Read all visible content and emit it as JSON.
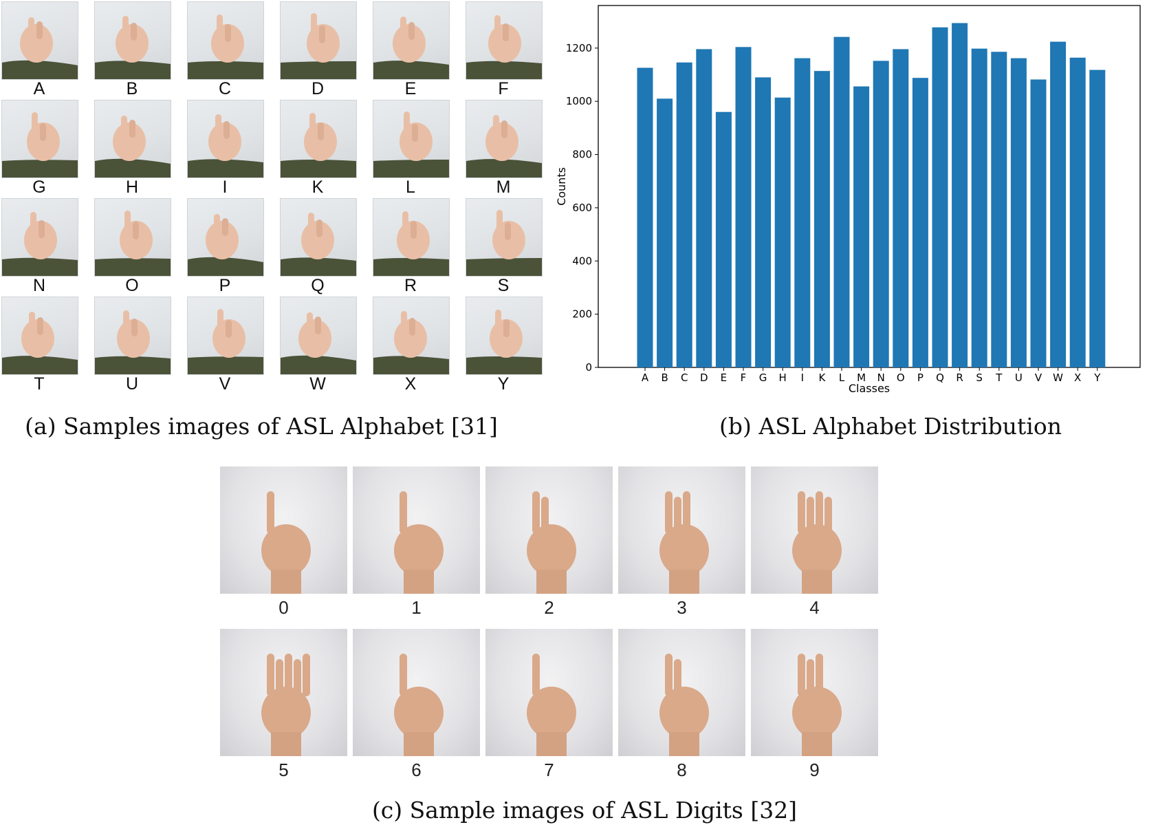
{
  "alphabet_samples": [
    "A",
    "B",
    "C",
    "D",
    "E",
    "F",
    "G",
    "H",
    "I",
    "K",
    "L",
    "M",
    "N",
    "O",
    "P",
    "Q",
    "R",
    "S",
    "T",
    "U",
    "V",
    "W",
    "X",
    "Y"
  ],
  "digit_samples": [
    "0",
    "1",
    "2",
    "3",
    "4",
    "5",
    "6",
    "7",
    "8",
    "9"
  ],
  "captions": {
    "a": "(a) Samples images of ASL Alphabet [31]",
    "b": "(b) ASL Alphabet Distribution",
    "c": "(c) Sample images of ASL Digits [32]"
  },
  "colors": {
    "bar": "#1f77b4",
    "skin": "#e8bfa6",
    "sleeve": "#4a5238"
  },
  "chart_data": {
    "type": "bar",
    "categories": [
      "A",
      "B",
      "C",
      "D",
      "E",
      "F",
      "G",
      "H",
      "I",
      "K",
      "L",
      "M",
      "N",
      "O",
      "P",
      "Q",
      "R",
      "S",
      "T",
      "U",
      "V",
      "W",
      "X",
      "Y"
    ],
    "values": [
      1126,
      1010,
      1146,
      1196,
      960,
      1204,
      1090,
      1014,
      1162,
      1114,
      1242,
      1056,
      1152,
      1196,
      1088,
      1278,
      1294,
      1198,
      1186,
      1162,
      1082,
      1224,
      1164,
      1118
    ],
    "title": "",
    "xlabel": "Classes",
    "ylabel": "Counts",
    "ylim": [
      0,
      1360
    ],
    "yticks": [
      0,
      200,
      400,
      600,
      800,
      1000,
      1200
    ],
    "grid": false
  }
}
